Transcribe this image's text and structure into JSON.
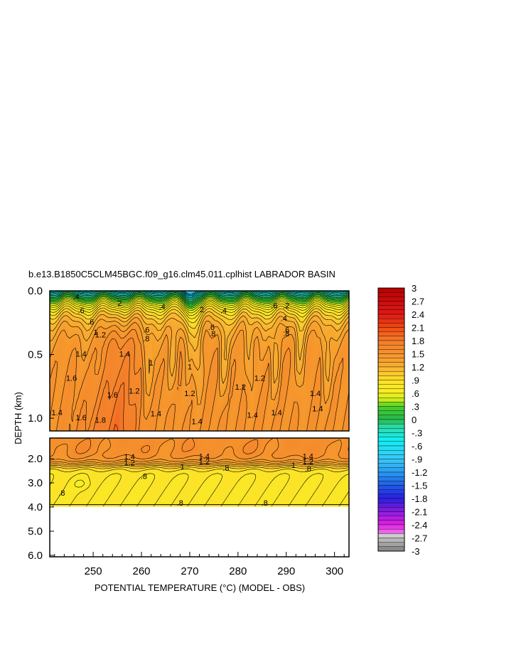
{
  "chart_data": {
    "type": "heatmap",
    "title": "b.e13.B1850C5CLM45BGC.f09_g16.clm45.011.cplhist LABRADOR BASIN",
    "xlabel": "POTENTIAL TEMPERATURE (°C) (MODEL - OBS)",
    "ylabel": "DEPTH (km)",
    "xlim": [
      241,
      303
    ],
    "x_ticks": [
      "250",
      "260",
      "270",
      "280",
      "290",
      "300"
    ],
    "y_ticks_upper": [
      "0.0",
      "0.5",
      "1.0"
    ],
    "y_ticks_lower": [
      "2.0",
      "3.0",
      "4.0",
      "5.0",
      "6.0"
    ],
    "upper_panel_ylim": [
      0.0,
      1.1
    ],
    "lower_panel_ylim": [
      1.1,
      6.0
    ],
    "data_bottom_depth_km": 3.9,
    "colorbar": {
      "range": [
        -3,
        3
      ],
      "step": 0.1,
      "tick_labels": [
        "3",
        "2.7",
        "2.4",
        "2.1",
        "1.8",
        "1.5",
        "1.2",
        ".9",
        ".6",
        ".3",
        "0",
        "-.3",
        "-.6",
        "-.9",
        "-1.2",
        "-1.5",
        "-1.8",
        "-2.1",
        "-2.4",
        "-2.7",
        "-3"
      ],
      "color_stops": [
        {
          "v": 3.0,
          "c": "#b80000"
        },
        {
          "v": 2.4,
          "c": "#e01818"
        },
        {
          "v": 2.1,
          "c": "#f04a10"
        },
        {
          "v": 1.8,
          "c": "#f47c2a"
        },
        {
          "v": 1.5,
          "c": "#f5922c"
        },
        {
          "v": 1.2,
          "c": "#f8b030"
        },
        {
          "v": 0.9,
          "c": "#fde02a"
        },
        {
          "v": 0.6,
          "c": "#f6f020"
        },
        {
          "v": 0.45,
          "c": "#c8ea1c"
        },
        {
          "v": 0.3,
          "c": "#4ad02a"
        },
        {
          "v": 0.0,
          "c": "#22b84a"
        },
        {
          "v": -0.15,
          "c": "#30d8a0"
        },
        {
          "v": -0.45,
          "c": "#10f0f0"
        },
        {
          "v": -0.9,
          "c": "#38c8f8"
        },
        {
          "v": -1.2,
          "c": "#2a9cf0"
        },
        {
          "v": -1.5,
          "c": "#1f5ce8"
        },
        {
          "v": -1.8,
          "c": "#2a1ee0"
        },
        {
          "v": -2.1,
          "c": "#8a1ce0"
        },
        {
          "v": -2.4,
          "c": "#e020e0"
        },
        {
          "v": -2.55,
          "c": "#f060f0"
        },
        {
          "v": -2.6,
          "c": "#d8d8d8"
        },
        {
          "v": -3.0,
          "c": "#808080"
        }
      ]
    },
    "upper_contour_labels": [
      {
        "text": ".4",
        "x": 246.5,
        "d": 0.05
      },
      {
        "text": ".6",
        "x": 247.5,
        "d": 0.16
      },
      {
        "text": "2",
        "x": 255.5,
        "d": 0.1
      },
      {
        "text": ".4",
        "x": 264.3,
        "d": 0.13
      },
      {
        "text": "2",
        "x": 272.5,
        "d": 0.15
      },
      {
        "text": ".4",
        "x": 277,
        "d": 0.16
      },
      {
        "text": ".6",
        "x": 287.5,
        "d": 0.12
      },
      {
        "text": ".2",
        "x": 290,
        "d": 0.12
      },
      {
        "text": ".4",
        "x": 289.5,
        "d": 0.22
      },
      {
        "text": ".6",
        "x": 290,
        "d": 0.31
      },
      {
        "text": ".8",
        "x": 290,
        "d": 0.34
      },
      {
        "text": ".6",
        "x": 274.5,
        "d": 0.29
      },
      {
        "text": ".8",
        "x": 274.7,
        "d": 0.34
      },
      {
        "text": ".6",
        "x": 261,
        "d": 0.31
      },
      {
        "text": ".8",
        "x": 261,
        "d": 0.38
      },
      {
        "text": ".6",
        "x": 249.5,
        "d": 0.25
      },
      {
        "text": "1",
        "x": 250.5,
        "d": 0.33
      },
      {
        "text": "1.2",
        "x": 251.5,
        "d": 0.35
      },
      {
        "text": "1.4",
        "x": 247.5,
        "d": 0.5
      },
      {
        "text": "1.4",
        "x": 256.5,
        "d": 0.5
      },
      {
        "text": "1.2",
        "x": 258.5,
        "d": 0.79
      },
      {
        "text": "1",
        "x": 262,
        "d": 0.57
      },
      {
        "text": "1",
        "x": 270,
        "d": 0.6
      },
      {
        "text": "1.2",
        "x": 270,
        "d": 0.81
      },
      {
        "text": "1.2",
        "x": 280.5,
        "d": 0.76
      },
      {
        "text": "1.2",
        "x": 284.5,
        "d": 0.69
      },
      {
        "text": "1.4",
        "x": 283,
        "d": 0.98
      },
      {
        "text": "1.4",
        "x": 288,
        "d": 0.96
      },
      {
        "text": "1.4",
        "x": 296,
        "d": 0.81
      },
      {
        "text": "1.4",
        "x": 296.5,
        "d": 0.93
      },
      {
        "text": "1.6",
        "x": 245.5,
        "d": 0.69
      },
      {
        "text": "1.6",
        "x": 254,
        "d": 0.82
      },
      {
        "text": "1.6",
        "x": 247.5,
        "d": 1.0
      },
      {
        "text": "1.8",
        "x": 251.5,
        "d": 1.02
      },
      {
        "text": "1.4",
        "x": 242.5,
        "d": 0.96
      },
      {
        "text": "1.4",
        "x": 263,
        "d": 0.97
      },
      {
        "text": "1.4",
        "x": 271.5,
        "d": 1.03
      }
    ],
    "lower_contour_labels": [
      {
        "text": "1.4",
        "x": 257.5,
        "d": 1.95
      },
      {
        "text": "1.2",
        "x": 257.5,
        "d": 2.2
      },
      {
        "text": "1.4",
        "x": 273,
        "d": 1.93
      },
      {
        "text": "1.2",
        "x": 273,
        "d": 2.15
      },
      {
        "text": "1",
        "x": 268.5,
        "d": 2.35
      },
      {
        "text": ".8",
        "x": 277.5,
        "d": 2.42
      },
      {
        "text": "1.4",
        "x": 294.5,
        "d": 1.93
      },
      {
        "text": "1.2",
        "x": 294.5,
        "d": 2.15
      },
      {
        "text": "1",
        "x": 291.5,
        "d": 2.3
      },
      {
        "text": ".8",
        "x": 294.5,
        "d": 2.45
      },
      {
        "text": ".8",
        "x": 260.5,
        "d": 2.75
      },
      {
        "text": ".8",
        "x": 243.5,
        "d": 3.45
      },
      {
        "text": ".8",
        "x": 268,
        "d": 3.85
      },
      {
        "text": ".8",
        "x": 285.5,
        "d": 3.85
      }
    ]
  }
}
